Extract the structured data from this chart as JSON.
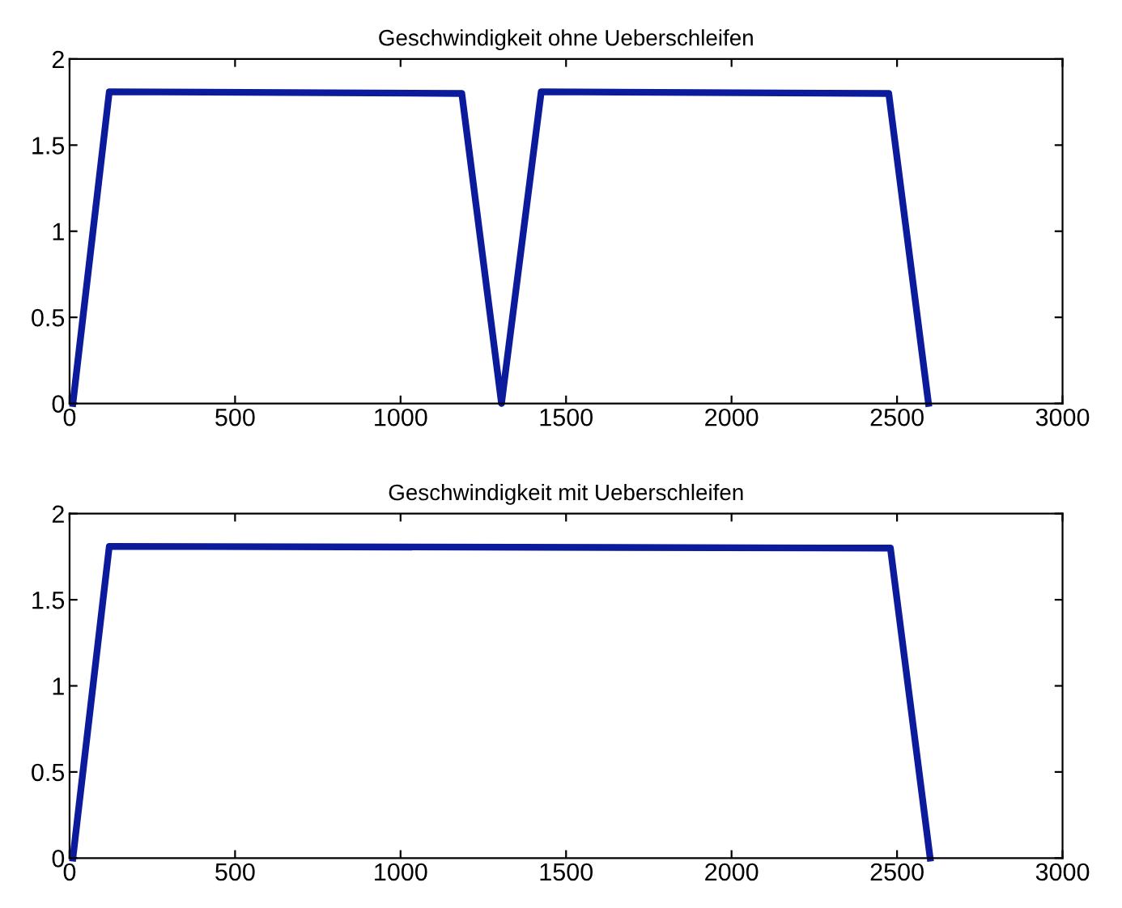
{
  "chart_data": [
    {
      "type": "line",
      "title": "Geschwindigkeit ohne Ueberschleifen",
      "x": [
        10,
        120,
        1185,
        1305,
        1425,
        2475,
        2595
      ],
      "series": [
        {
          "color": "#0b1b9c",
          "values": [
            0,
            1.81,
            1.8,
            0,
            1.81,
            1.8,
            0
          ]
        }
      ],
      "xlim": [
        0,
        3000
      ],
      "xticks": [
        0,
        500,
        1000,
        1500,
        2000,
        2500,
        3000
      ],
      "ylim": [
        0,
        2
      ],
      "yticks": [
        0,
        0.5,
        1,
        1.5,
        2
      ],
      "grid": false,
      "legend": false
    },
    {
      "type": "line",
      "title": "Geschwindigkeit mit Ueberschleifen",
      "x": [
        10,
        120,
        2480,
        2600
      ],
      "series": [
        {
          "color": "#0b1b9c",
          "values": [
            0,
            1.81,
            1.8,
            0
          ]
        }
      ],
      "xlim": [
        0,
        3000
      ],
      "xticks": [
        0,
        500,
        1000,
        1500,
        2000,
        2500,
        3000
      ],
      "ylim": [
        0,
        2
      ],
      "yticks": [
        0,
        0.5,
        1,
        1.5,
        2
      ],
      "grid": false,
      "legend": false
    }
  ]
}
